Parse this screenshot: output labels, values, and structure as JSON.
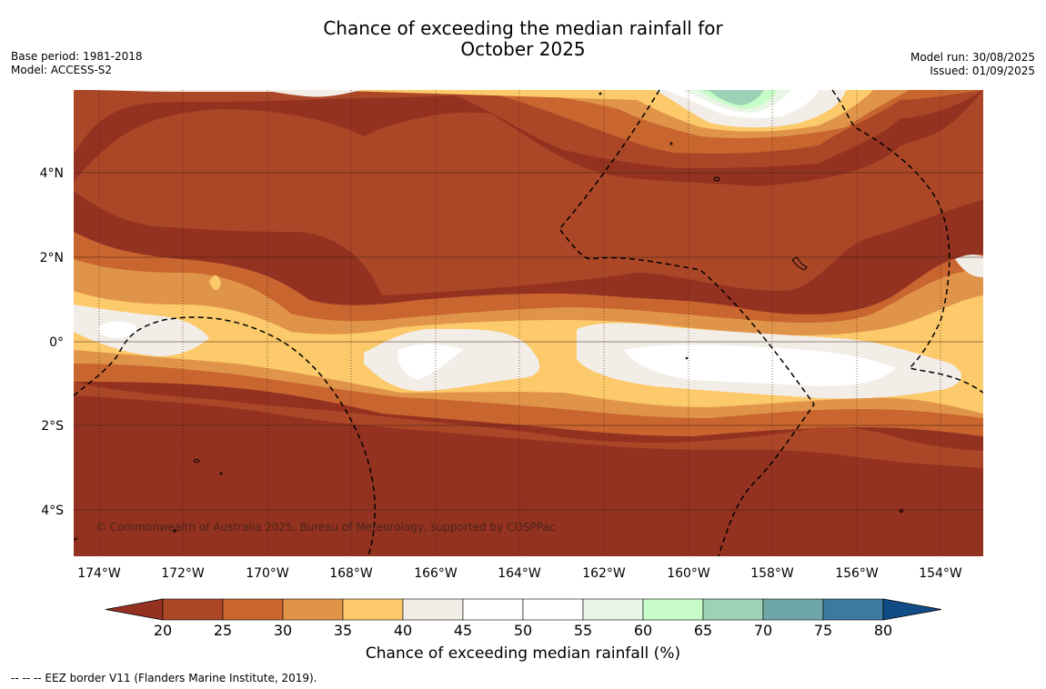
{
  "title_line1": "Chance of exceeding the median rainfall for",
  "title_line2": "October 2025",
  "left_meta": {
    "base_period": "Base period: 1981-2018",
    "model": "Model: ACCESS-S2"
  },
  "right_meta": {
    "model_run": "Model run: 30/08/2025",
    "issued": "Issued: 01/09/2025"
  },
  "map": {
    "lat_labels": [
      "4°N",
      "2°N",
      "0°",
      "2°S",
      "4°S"
    ],
    "lon_labels": [
      "174°W",
      "172°W",
      "170°W",
      "168°W",
      "166°W",
      "164°W",
      "162°W",
      "160°W",
      "158°W",
      "156°W",
      "154°W"
    ],
    "copyright": "© Commonwealth of Australia 2025, Bureau of Meteorology, supported by COSPPac"
  },
  "colorbar": {
    "ticks": [
      "20",
      "25",
      "30",
      "35",
      "40",
      "45",
      "50",
      "55",
      "60",
      "65",
      "70",
      "75",
      "80"
    ],
    "colors": [
      "#943221",
      "#ab4727",
      "#c9652f",
      "#e0944a",
      "#fcc96b",
      "#f2ede7",
      "#ffffff",
      "#ffffff",
      "#e9f5e6",
      "#c8fcc8",
      "#9ed1b5",
      "#6fa7a8",
      "#3d7aa0",
      "#114c87"
    ],
    "title": "Chance of exceeding median rainfall (%)"
  },
  "footnote": "--  --  -- EEZ border V11 (Flanders Marine Institute, 2019)."
}
